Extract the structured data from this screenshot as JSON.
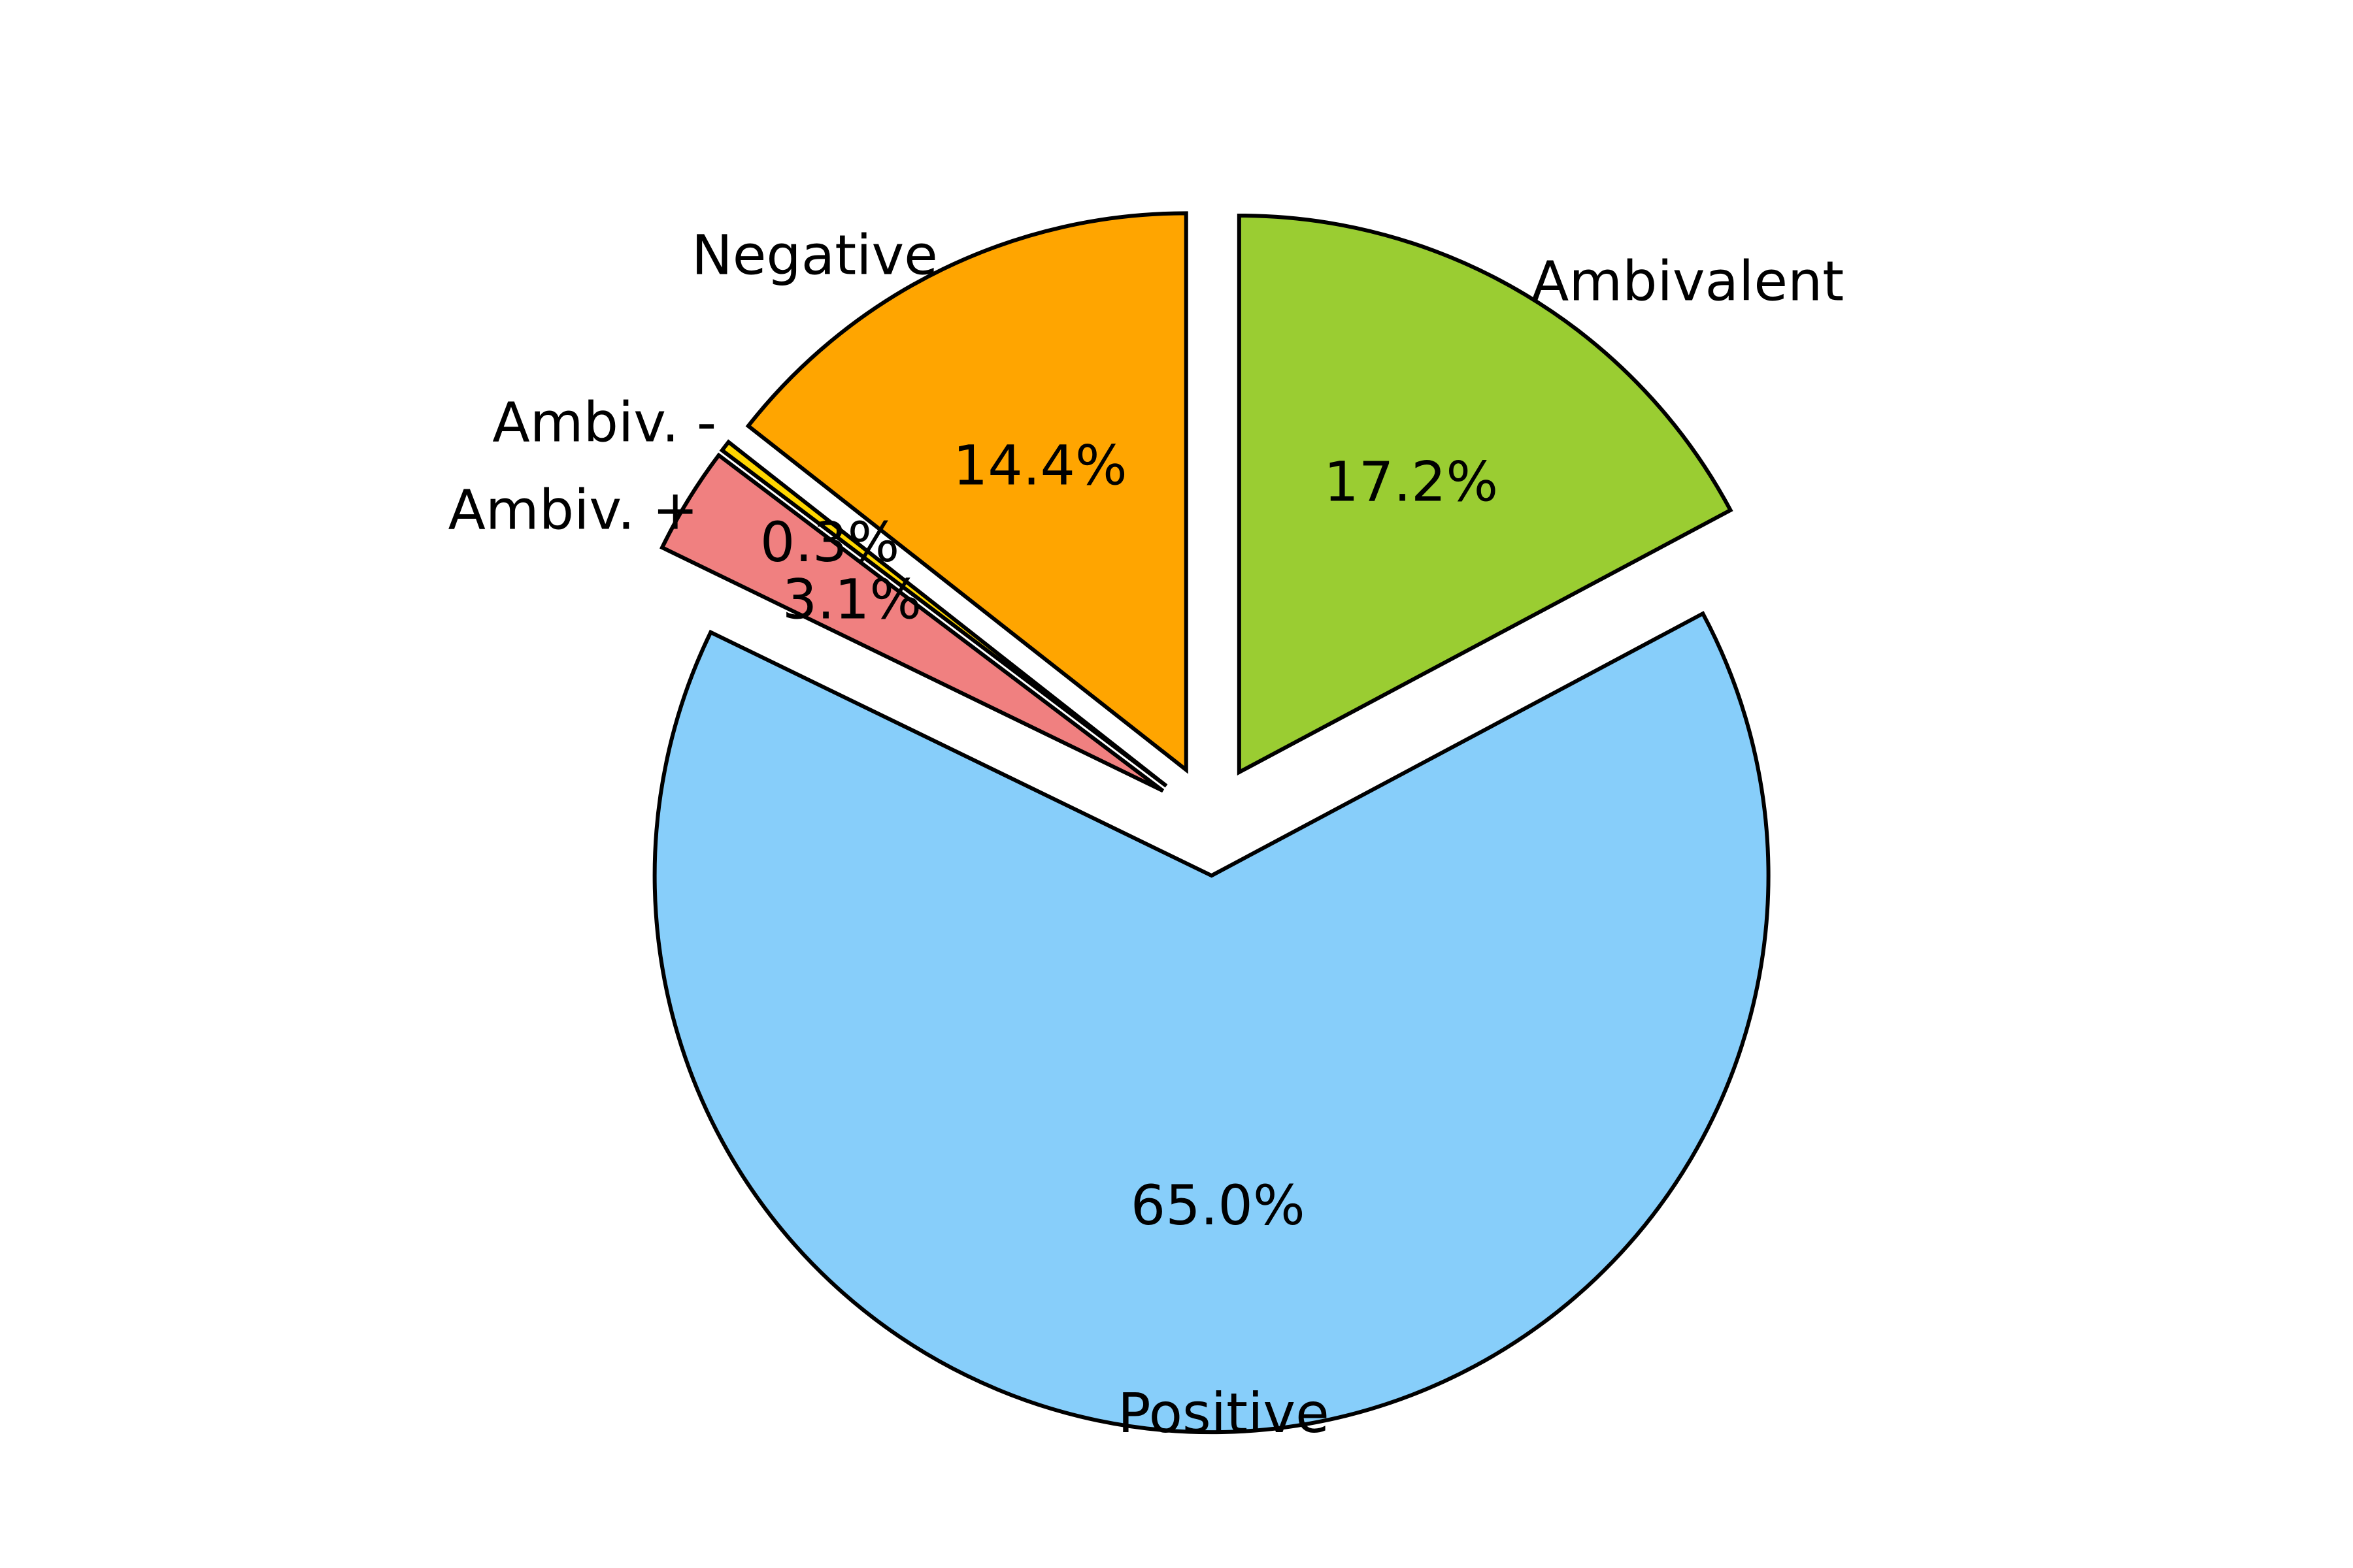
{
  "chart_data": {
    "type": "pie",
    "title": "",
    "start_angle_deg": 90,
    "direction": "clockwise",
    "slices": [
      {
        "label": "Ambivalent",
        "value": 17.2,
        "pct_label": "17.2%",
        "color": "#9acd32",
        "exploded": true
      },
      {
        "label": "Positive",
        "value": 65.0,
        "pct_label": "65.0%",
        "color": "#87cefa",
        "exploded": true
      },
      {
        "label": "Ambiv. +",
        "value": 3.1,
        "pct_label": "3.1%",
        "color": "#f08080",
        "exploded": true
      },
      {
        "label": "Ambiv. -",
        "value": 0.3,
        "pct_label": "0.3%",
        "color": "#ffd700",
        "exploded": true
      },
      {
        "label": "Negative",
        "value": 14.4,
        "pct_label": "14.4%",
        "color": "#ffa500",
        "exploded": true
      }
    ],
    "edge_color": "#000000"
  }
}
